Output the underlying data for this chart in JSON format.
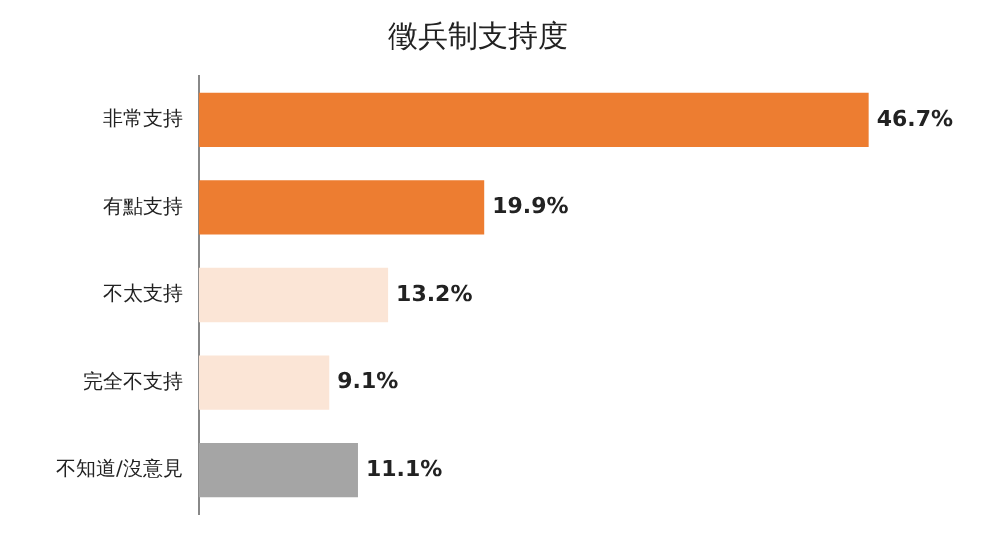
{
  "chart_data": {
    "type": "bar",
    "orientation": "horizontal",
    "title": "徵兵制支持度",
    "categories": [
      "非常支持",
      "有點支持",
      "不太支持",
      "完全不支持",
      "不知道/沒意見"
    ],
    "values": [
      46.7,
      19.9,
      13.2,
      9.1,
      11.1
    ],
    "value_labels": [
      "46.7%",
      "19.9%",
      "13.2%",
      "9.1%",
      "11.1%"
    ],
    "colors": [
      "#ed7d31",
      "#ed7d31",
      "#fbe5d6",
      "#fbe5d6",
      "#a5a5a5"
    ],
    "legend": false
  }
}
